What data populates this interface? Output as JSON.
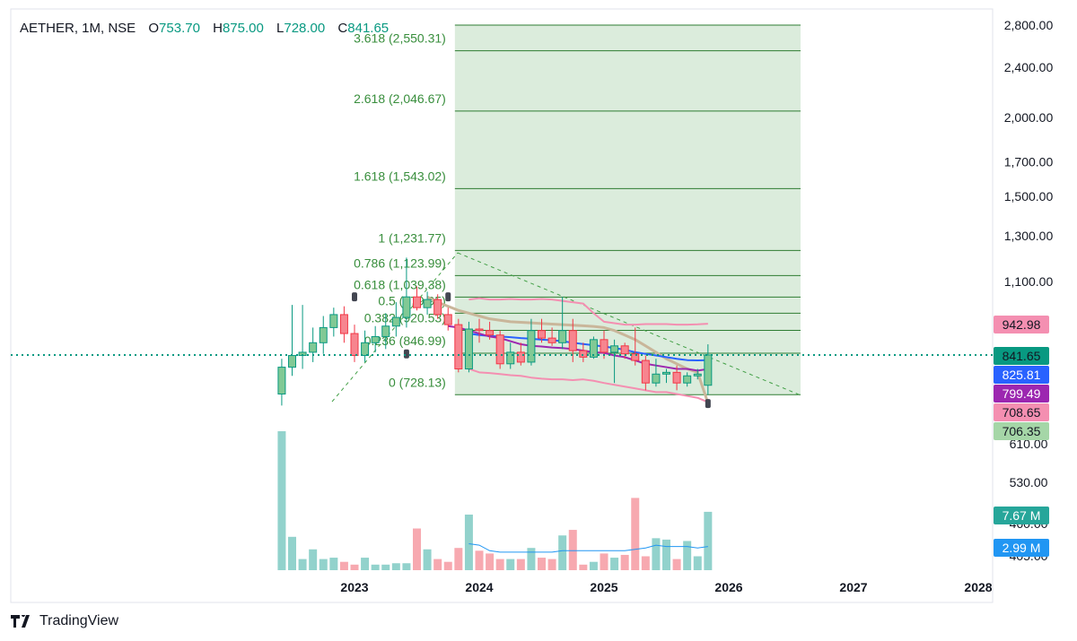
{
  "header": {
    "symbol": "AETHER, 1M, NSE",
    "o_label": "O",
    "o_value": "753.70",
    "h_label": "H",
    "h_value": "875.00",
    "l_label": "L",
    "l_value": "728.00",
    "c_label": "C",
    "c_value": "841.65"
  },
  "brand": {
    "name": "TradingView",
    "logo_icon": "tradingview-logo-icon"
  },
  "chart_data": {
    "type": "candlestick",
    "interval": "1M",
    "x_tick_labels": [
      "2023",
      "2024",
      "2025",
      "2026",
      "2027",
      "2028"
    ],
    "price_axis_ticks": [
      "2,800.00",
      "2,400.00",
      "2,000.00",
      "1,700.00",
      "1,500.00",
      "1,300.00",
      "1,100.00",
      "610.00",
      "530.00",
      "460.00",
      "405.00"
    ],
    "price_axis_scale": "log",
    "candles": [
      {
        "date": "2022-06",
        "o": 730,
        "h": 830,
        "l": 700,
        "c": 805
      },
      {
        "date": "2022-07",
        "o": 805,
        "h": 1010,
        "l": 780,
        "c": 840
      },
      {
        "date": "2022-08",
        "o": 840,
        "h": 1010,
        "l": 800,
        "c": 850
      },
      {
        "date": "2022-09",
        "o": 850,
        "h": 930,
        "l": 820,
        "c": 880
      },
      {
        "date": "2022-10",
        "o": 880,
        "h": 970,
        "l": 845,
        "c": 930
      },
      {
        "date": "2022-11",
        "o": 930,
        "h": 1000,
        "l": 900,
        "c": 975
      },
      {
        "date": "2022-12",
        "o": 975,
        "h": 1005,
        "l": 880,
        "c": 910
      },
      {
        "date": "2023-01",
        "o": 910,
        "h": 940,
        "l": 820,
        "c": 840
      },
      {
        "date": "2023-02",
        "o": 840,
        "h": 920,
        "l": 820,
        "c": 880
      },
      {
        "date": "2023-03",
        "o": 880,
        "h": 935,
        "l": 850,
        "c": 900
      },
      {
        "date": "2023-04",
        "o": 900,
        "h": 980,
        "l": 860,
        "c": 935
      },
      {
        "date": "2023-05",
        "o": 935,
        "h": 1020,
        "l": 900,
        "c": 965
      },
      {
        "date": "2023-06",
        "o": 965,
        "h": 1200,
        "l": 930,
        "c": 1040
      },
      {
        "date": "2023-07",
        "o": 1040,
        "h": 1080,
        "l": 990,
        "c": 1000
      },
      {
        "date": "2023-08",
        "o": 1000,
        "h": 1060,
        "l": 975,
        "c": 1030
      },
      {
        "date": "2023-09",
        "o": 1030,
        "h": 1050,
        "l": 960,
        "c": 975
      },
      {
        "date": "2023-10",
        "o": 975,
        "h": 1000,
        "l": 920,
        "c": 940
      },
      {
        "date": "2023-11",
        "o": 940,
        "h": 960,
        "l": 790,
        "c": 800
      },
      {
        "date": "2023-12",
        "o": 800,
        "h": 950,
        "l": 790,
        "c": 925
      },
      {
        "date": "2024-01",
        "o": 925,
        "h": 960,
        "l": 880,
        "c": 920
      },
      {
        "date": "2024-02",
        "o": 920,
        "h": 950,
        "l": 890,
        "c": 905
      },
      {
        "date": "2024-03",
        "o": 905,
        "h": 920,
        "l": 800,
        "c": 815
      },
      {
        "date": "2024-04",
        "o": 815,
        "h": 880,
        "l": 800,
        "c": 850
      },
      {
        "date": "2024-05",
        "o": 850,
        "h": 880,
        "l": 810,
        "c": 820
      },
      {
        "date": "2024-06",
        "o": 820,
        "h": 960,
        "l": 810,
        "c": 920
      },
      {
        "date": "2024-07",
        "o": 920,
        "h": 960,
        "l": 880,
        "c": 895
      },
      {
        "date": "2024-08",
        "o": 895,
        "h": 930,
        "l": 870,
        "c": 880
      },
      {
        "date": "2024-09",
        "o": 880,
        "h": 1040,
        "l": 860,
        "c": 920
      },
      {
        "date": "2024-10",
        "o": 920,
        "h": 960,
        "l": 820,
        "c": 855
      },
      {
        "date": "2024-11",
        "o": 855,
        "h": 880,
        "l": 820,
        "c": 835
      },
      {
        "date": "2024-12",
        "o": 835,
        "h": 900,
        "l": 830,
        "c": 890
      },
      {
        "date": "2025-01",
        "o": 890,
        "h": 920,
        "l": 830,
        "c": 850
      },
      {
        "date": "2025-02",
        "o": 850,
        "h": 890,
        "l": 760,
        "c": 870
      },
      {
        "date": "2025-03",
        "o": 870,
        "h": 880,
        "l": 830,
        "c": 845
      },
      {
        "date": "2025-04",
        "o": 845,
        "h": 930,
        "l": 810,
        "c": 825
      },
      {
        "date": "2025-05",
        "o": 825,
        "h": 840,
        "l": 740,
        "c": 760
      },
      {
        "date": "2025-06",
        "o": 760,
        "h": 830,
        "l": 750,
        "c": 785
      },
      {
        "date": "2025-07",
        "o": 785,
        "h": 800,
        "l": 760,
        "c": 790
      },
      {
        "date": "2025-08",
        "o": 790,
        "h": 810,
        "l": 740,
        "c": 760
      },
      {
        "date": "2025-09",
        "o": 760,
        "h": 790,
        "l": 750,
        "c": 780
      },
      {
        "date": "2025-10",
        "o": 780,
        "h": 800,
        "l": 770,
        "c": 785
      },
      {
        "date": "2025-11",
        "o": 753.7,
        "h": 875.0,
        "l": 728.0,
        "c": 841.65
      }
    ],
    "volume_relative": [
      1.0,
      0.24,
      0.08,
      0.15,
      0.08,
      0.09,
      0.06,
      0.04,
      0.09,
      0.04,
      0.04,
      0.05,
      0.05,
      0.3,
      0.15,
      0.08,
      0.06,
      0.16,
      0.4,
      0.14,
      0.12,
      0.08,
      0.08,
      0.08,
      0.16,
      0.09,
      0.08,
      0.25,
      0.29,
      0.04,
      0.06,
      0.12,
      0.09,
      0.11,
      0.52,
      0.1,
      0.23,
      0.22,
      0.08,
      0.21,
      0.1,
      0.42
    ],
    "volume_ma_relative": [
      null,
      null,
      null,
      null,
      null,
      null,
      null,
      null,
      null,
      null,
      null,
      null,
      null,
      null,
      null,
      null,
      null,
      null,
      0.19,
      0.18,
      0.14,
      0.13,
      0.13,
      0.13,
      0.13,
      0.13,
      0.13,
      0.14,
      0.14,
      0.14,
      0.14,
      0.14,
      0.14,
      0.14,
      0.15,
      0.16,
      0.18,
      0.17,
      0.17,
      0.17,
      0.16,
      0.17
    ],
    "ma_purple": [
      null,
      null,
      null,
      null,
      null,
      null,
      null,
      null,
      null,
      null,
      null,
      null,
      null,
      null,
      null,
      null,
      935,
      930,
      920,
      910,
      900,
      895,
      885,
      875,
      870,
      868,
      865,
      863,
      860,
      855,
      850,
      848,
      840,
      835,
      825,
      815,
      810,
      805,
      800,
      800,
      795,
      799.49
    ],
    "ma_blue": [
      null,
      null,
      null,
      null,
      null,
      null,
      null,
      null,
      null,
      null,
      null,
      null,
      null,
      null,
      null,
      null,
      null,
      null,
      910,
      905,
      902,
      900,
      898,
      895,
      893,
      890,
      888,
      885,
      880,
      876,
      872,
      868,
      863,
      858,
      850,
      845,
      840,
      835,
      830,
      826,
      825,
      825.81
    ],
    "ma_tan": [
      null,
      null,
      null,
      null,
      null,
      null,
      null,
      null,
      null,
      null,
      null,
      null,
      null,
      null,
      1040,
      1020,
      1005,
      990,
      980,
      970,
      960,
      955,
      950,
      948,
      946,
      944,
      942,
      940,
      938,
      936,
      934,
      930,
      920,
      905,
      890,
      870,
      850,
      830,
      815,
      800,
      790,
      706.35
    ],
    "bb_upper": [
      null,
      null,
      null,
      null,
      null,
      null,
      null,
      null,
      null,
      null,
      null,
      null,
      null,
      null,
      null,
      null,
      null,
      null,
      1030,
      1035,
      1030,
      1030,
      1032,
      1030,
      1030,
      1032,
      1030,
      1025,
      1020,
      1015,
      980,
      950,
      945,
      940,
      940,
      942,
      942,
      942,
      940,
      940,
      941,
      942.98
    ],
    "bb_lower": [
      null,
      null,
      null,
      null,
      null,
      null,
      null,
      null,
      null,
      null,
      null,
      null,
      null,
      null,
      null,
      null,
      null,
      null,
      800,
      790,
      788,
      785,
      782,
      780,
      775,
      772,
      770,
      770,
      768,
      770,
      766,
      760,
      755,
      750,
      745,
      740,
      735,
      735,
      730,
      725,
      720,
      708.65
    ],
    "fib_levels": [
      {
        "ratio": "0",
        "label": "0 (728.13)",
        "price": 728.13
      },
      {
        "ratio": "0.236",
        "label": "0.236 (846.99)",
        "price": 846.99
      },
      {
        "ratio": "0.382",
        "label": "0.382 (920.53)",
        "price": 920.53
      },
      {
        "ratio": "0.5",
        "label": "0.5 (979.95)",
        "price": 979.95
      },
      {
        "ratio": "0.618",
        "label": "0.618 (1,039.38)",
        "price": 1039.38
      },
      {
        "ratio": "0.786",
        "label": "0.786 (1,123.99)",
        "price": 1123.99
      },
      {
        "ratio": "1",
        "label": "1 (1,231.77)",
        "price": 1231.77
      },
      {
        "ratio": "1.618",
        "label": "1.618 (1,543.02)",
        "price": 1543.02
      },
      {
        "ratio": "2.618",
        "label": "2.618 (2,046.67)",
        "price": 2046.67
      },
      {
        "ratio": "3.618",
        "label": "3.618 (2,550.31)",
        "price": 2550.31
      }
    ],
    "fib_extra_levels": [
      2800
    ],
    "last_price": 841.65,
    "price_labels": [
      {
        "name": "last-price-label",
        "text": "841.65",
        "price": 841.65,
        "color": "#089981"
      },
      {
        "name": "blue-ma-label",
        "text": "825.81",
        "price": 825.81,
        "color": "#2962ff"
      },
      {
        "name": "purple-ma-label",
        "text": "799.49",
        "price": 799.49,
        "color": "#9c27b0"
      },
      {
        "name": "bb-lower-label",
        "text": "708.65",
        "price": 708.65,
        "color": "#f48fb1"
      },
      {
        "name": "tan-ma-label",
        "text": "706.35",
        "price": 706.35,
        "color": "#a5d6a7"
      },
      {
        "name": "bb-upper-label",
        "text": "942.98",
        "price": 942.98,
        "color": "#f48fb1"
      }
    ],
    "volume_labels": [
      {
        "name": "volume-label",
        "text": "7.67 M",
        "color": "#26a69a"
      },
      {
        "name": "volume-ma-label",
        "text": "2.99 M",
        "color": "#2196f3"
      }
    ],
    "colors": {
      "up": "#089981",
      "up_fill": "#81c995",
      "down": "#f23645",
      "down_fill": "#f7858f",
      "fib_zone": "#d7ead8",
      "fib_line": "#2e7d32",
      "fib_text": "#388e3c",
      "vol_up": "#92d2cc",
      "vol_down": "#f7a9b0",
      "ma_purple": "#9c27b0",
      "ma_blue": "#2962ff",
      "ma_tan": "#c9b69a",
      "bb": "#f48fb1",
      "last_line": "#089981",
      "grid": "#f0f3fa"
    }
  }
}
